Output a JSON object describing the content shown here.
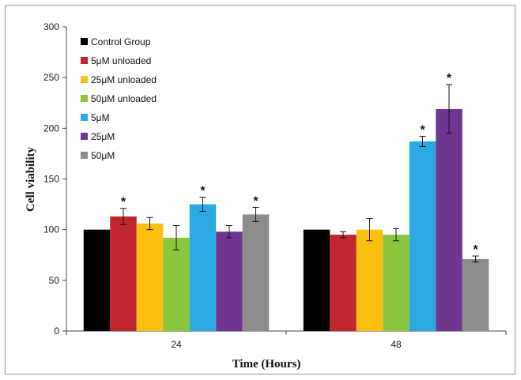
{
  "chart_data": {
    "type": "bar",
    "xlabel": "Time (Hours)",
    "ylabel": "Cell viability",
    "ylim": [
      0,
      300
    ],
    "yticks": [
      0,
      50,
      100,
      150,
      200,
      250,
      300
    ],
    "grid": false,
    "legend_position": "top-left",
    "categories": [
      "24",
      "48"
    ],
    "series": [
      {
        "name": "Control Group",
        "color": "#000000",
        "values": [
          100,
          100
        ],
        "errors": [
          0,
          0
        ],
        "significant": [
          false,
          false
        ]
      },
      {
        "name": "5μM unloaded",
        "color": "#c0262d",
        "values": [
          113,
          95
        ],
        "errors": [
          8,
          3
        ],
        "significant": [
          true,
          false
        ]
      },
      {
        "name": "25μM unloaded",
        "color": "#fbbf10",
        "values": [
          106,
          100
        ],
        "errors": [
          6,
          11
        ],
        "significant": [
          false,
          false
        ]
      },
      {
        "name": "50μM unloaded",
        "color": "#8cc63f",
        "values": [
          92,
          95
        ],
        "errors": [
          12,
          6
        ],
        "significant": [
          false,
          false
        ]
      },
      {
        "name": "5μM",
        "color": "#2aaae1",
        "values": [
          125,
          187
        ],
        "errors": [
          7,
          5
        ],
        "significant": [
          true,
          true
        ]
      },
      {
        "name": "25μM",
        "color": "#6f3591",
        "values": [
          98,
          219
        ],
        "errors": [
          6,
          24
        ],
        "significant": [
          false,
          true
        ]
      },
      {
        "name": "50μM",
        "color": "#8c8c8c",
        "values": [
          115,
          71
        ],
        "errors": [
          7,
          3
        ],
        "significant": [
          true,
          true
        ]
      }
    ],
    "significance_marker": "*"
  }
}
